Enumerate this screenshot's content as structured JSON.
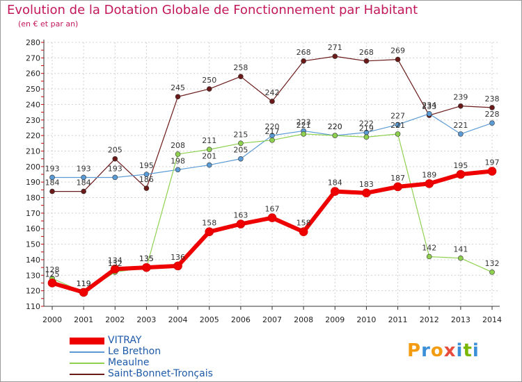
{
  "title": "Evolution de la Dotation Globale de Fonctionnement par Habitant",
  "subtitle": "(en € et par an)",
  "logo": {
    "letters": [
      "P",
      "r",
      "o",
      "x",
      "i",
      "t",
      "i"
    ],
    "colors": [
      "#f39c12",
      "#3a8fd6",
      "#f39c12",
      "#e74c3c",
      "#3a8fd6",
      "#7ab800",
      "#3a8fd6"
    ]
  },
  "legend": [
    {
      "name": "VITRAY",
      "color": "#ee0000"
    },
    {
      "name": "Le Brethon",
      "color": "#5b9bd5"
    },
    {
      "name": "Meaulne",
      "color": "#8fd14f"
    },
    {
      "name": "Saint-Bonnet-Tronçais",
      "color": "#6b1a1a"
    }
  ],
  "chart_data": {
    "type": "line",
    "title": "Evolution de la Dotation Globale de Fonctionnement par Habitant",
    "subtitle": "(en € et par an)",
    "xlabel": "",
    "ylabel": "",
    "x": [
      "2000",
      "2001",
      "2002",
      "2003",
      "2004",
      "2005",
      "2006",
      "2007",
      "2008",
      "2009",
      "2010",
      "2011",
      "2012",
      "2013",
      "2014"
    ],
    "ylim": [
      110,
      280
    ],
    "yticks": [
      110,
      120,
      130,
      140,
      150,
      160,
      170,
      180,
      190,
      200,
      210,
      220,
      230,
      240,
      250,
      260,
      270,
      280
    ],
    "grid": true,
    "series": [
      {
        "name": "Saint-Bonnet-Tronçais",
        "color": "#6b1a1a",
        "width": 1.2,
        "values": [
          184,
          184,
          205,
          186,
          245,
          250,
          258,
          242,
          268,
          271,
          268,
          269,
          233,
          239,
          238
        ]
      },
      {
        "name": "Le Brethon",
        "color": "#5b9bd5",
        "width": 1.2,
        "values": [
          193,
          193,
          193,
          195,
          198,
          201,
          205,
          220,
          223,
          220,
          222,
          227,
          234,
          221,
          228
        ]
      },
      {
        "name": "Meaulne",
        "color": "#8fd14f",
        "width": 1.2,
        "values": [
          128,
          119,
          132,
          135,
          208,
          211,
          215,
          217,
          221,
          220,
          219,
          221,
          142,
          141,
          132
        ]
      },
      {
        "name": "VITRAY",
        "color": "#ee0000",
        "width": 6,
        "values": [
          125,
          119,
          134,
          135,
          136,
          158,
          163,
          167,
          158,
          184,
          183,
          187,
          189,
          195,
          197
        ]
      }
    ]
  }
}
